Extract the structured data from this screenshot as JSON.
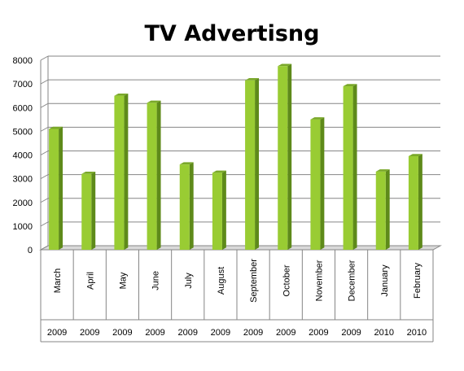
{
  "chart_data": {
    "type": "bar",
    "title": "TV Advertisng",
    "categories": [
      "March",
      "April",
      "May",
      "June",
      "July",
      "August",
      "September",
      "October",
      "November",
      "December",
      "January",
      "February"
    ],
    "years": [
      "2009",
      "2009",
      "2009",
      "2009",
      "2009",
      "2009",
      "2009",
      "2009",
      "2009",
      "2009",
      "2010",
      "2010"
    ],
    "values": [
      5100,
      3200,
      6500,
      6200,
      3600,
      3250,
      7150,
      7750,
      5500,
      6900,
      3300,
      3950
    ],
    "ylim": [
      0,
      8000
    ],
    "yticks": [
      "0",
      "1000",
      "2000",
      "3000",
      "4000",
      "5000",
      "6000",
      "7000",
      "8000"
    ],
    "xlabel": "",
    "ylabel": "",
    "grid": true,
    "legend": "none",
    "colors": {
      "bar_front": "#99cc33",
      "bar_side": "#5e8a1a",
      "bar_top": "#7aa82a",
      "grid": "#868686",
      "floor": "#d9d9d9"
    }
  }
}
